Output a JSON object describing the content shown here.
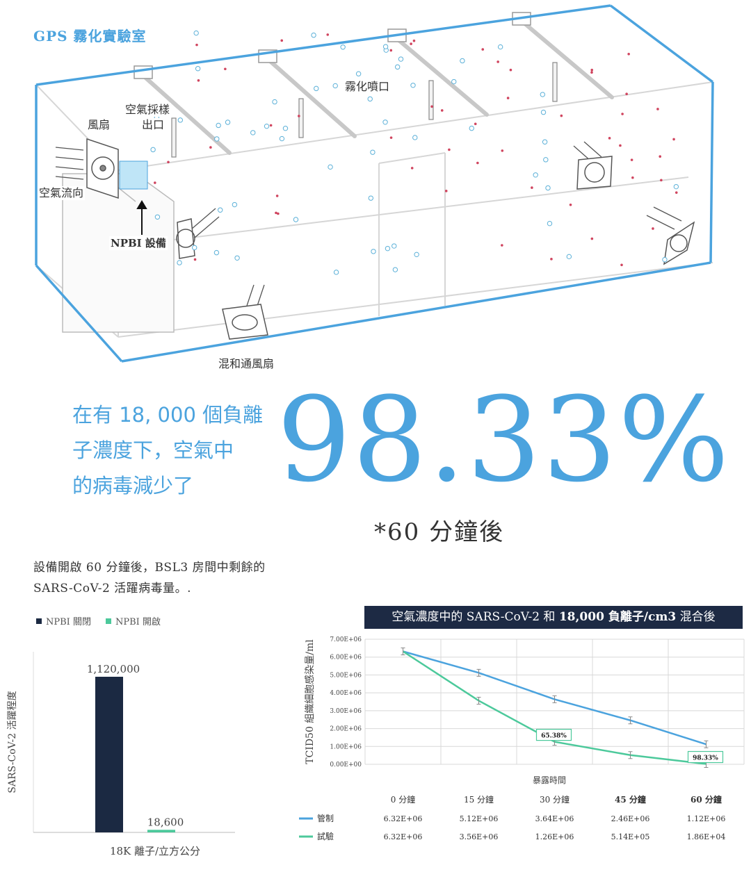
{
  "diagram": {
    "title": "GPS 霧化實驗室",
    "labels": {
      "fan": "風扇",
      "air_sampling": "空氣採樣",
      "outlet": "出口",
      "mist_nozzle": "霧化噴口",
      "airflow": "空氣流向",
      "npbi_device": "NPBI 設備",
      "mixing_fan": "混和通風扇"
    }
  },
  "headline": {
    "line1": "在有 18, 000 個負離",
    "line2": "子濃度下，空氣中",
    "line3": "的病毒減少了",
    "big_number": "98.33%",
    "footnote": "*60 分鐘後"
  },
  "description": {
    "line1": "設備開啟 60 分鐘後，BSL3 房間中剩餘的",
    "line2": "SARS-CoV-2 活躍病毒量。."
  },
  "colors": {
    "accent_blue": "#4ba3de",
    "navy": "#1b2942",
    "green": "#4cc99b"
  },
  "chart_data": [
    {
      "type": "bar",
      "legend": [
        "NPBI 關閉",
        "NPBI 開啟"
      ],
      "categories": [
        "NPBI 關閉",
        "NPBI 開啟"
      ],
      "values": [
        1120000,
        18600
      ],
      "value_labels": [
        "1,120,000",
        "18,600"
      ],
      "xlabel": "18K 離子/立方公分",
      "ylabel": "SARS-CoV-2 活躍程度",
      "ylim": [
        0,
        1300000
      ]
    },
    {
      "type": "line",
      "title_plain": "空氣濃度中的 SARS-CoV-2 和 ",
      "title_bold": "18,000 負離子/cm3",
      "title_tail": " 混合後",
      "xlabel": "暴露時間",
      "ylabel": "TCID50 組織細胞感染量/ml",
      "ylim": [
        0,
        7000000
      ],
      "yticks": [
        "0.00E+00",
        "1.00E+06",
        "2.00E+06",
        "3.00E+06",
        "4.00E+06",
        "5.00E+06",
        "6.00E+06",
        "7.00E+06"
      ],
      "categories": [
        "0 分鐘",
        "15 分鐘",
        "30 分鐘",
        "45 分鐘",
        "60 分鐘"
      ],
      "series": [
        {
          "name": "管制",
          "values": [
            6320000,
            5120000,
            3640000,
            2460000,
            1120000
          ],
          "labels": [
            "6.32E+06",
            "5.12E+06",
            "3.64E+06",
            "2.46E+06",
            "1.12E+06"
          ],
          "color": "#4ba3de"
        },
        {
          "name": "試驗",
          "values": [
            6320000,
            3560000,
            1260000,
            514000,
            18600
          ],
          "labels": [
            "6.32E+06",
            "3.56E+06",
            "1.26E+06",
            "5.14E+05",
            "1.86E+04"
          ],
          "color": "#4cc99b"
        }
      ],
      "annotations": [
        "65.38%",
        "98.33%"
      ]
    }
  ]
}
